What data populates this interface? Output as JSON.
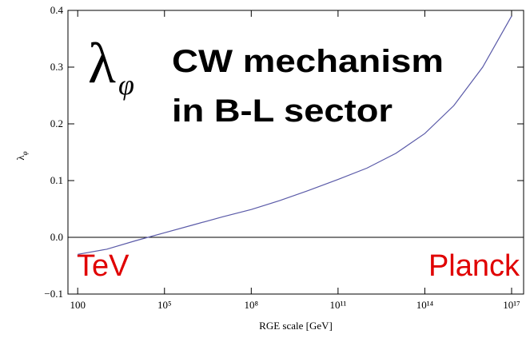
{
  "chart_data": {
    "type": "line",
    "xlabel": "RGE scale [GeV]",
    "ylabel": "λ",
    "ylabel_sub": "φ",
    "x": [
      100,
      1000,
      10000,
      100000,
      1000000,
      10000000,
      100000000,
      1000000000,
      10000000000,
      100000000000,
      1000000000000,
      10000000000000,
      100000000000000,
      1000000000000000,
      10000000000000000,
      100000000000000000
    ],
    "series": [
      {
        "name": "λφ",
        "color": "#5a5aa8",
        "values": [
          -0.03,
          -0.021,
          -0.006,
          0.008,
          0.022,
          0.036,
          0.049,
          0.065,
          0.083,
          0.102,
          0.122,
          0.148,
          0.183,
          0.232,
          0.3,
          0.39
        ]
      }
    ],
    "xscale": "log",
    "xlim": [
      46,
      260000000000000000
    ],
    "xticks": [
      100,
      {
        "value": 100000,
        "label": "10⁵"
      },
      {
        "value": 100000000,
        "label": "10⁸"
      },
      {
        "value": 100000000000,
        "label": "10¹¹"
      },
      {
        "value": 100000000000000,
        "label": "10¹⁴"
      },
      {
        "value": 100000000000000000,
        "label": "10¹⁷"
      }
    ],
    "ylim": [
      -0.1,
      0.4
    ],
    "yticks": [
      {
        "value": -0.1,
        "label": "−0.1"
      },
      {
        "value": 0,
        "label": "0.0"
      },
      0.1,
      0.2,
      0.3,
      0.4
    ],
    "hline": 0,
    "annotations": {
      "symbol": "λ",
      "symbol_sub": "φ",
      "headline": [
        "CW mechanism",
        "in B-L sector"
      ],
      "low_end": "TeV",
      "high_end": "Planck"
    }
  }
}
